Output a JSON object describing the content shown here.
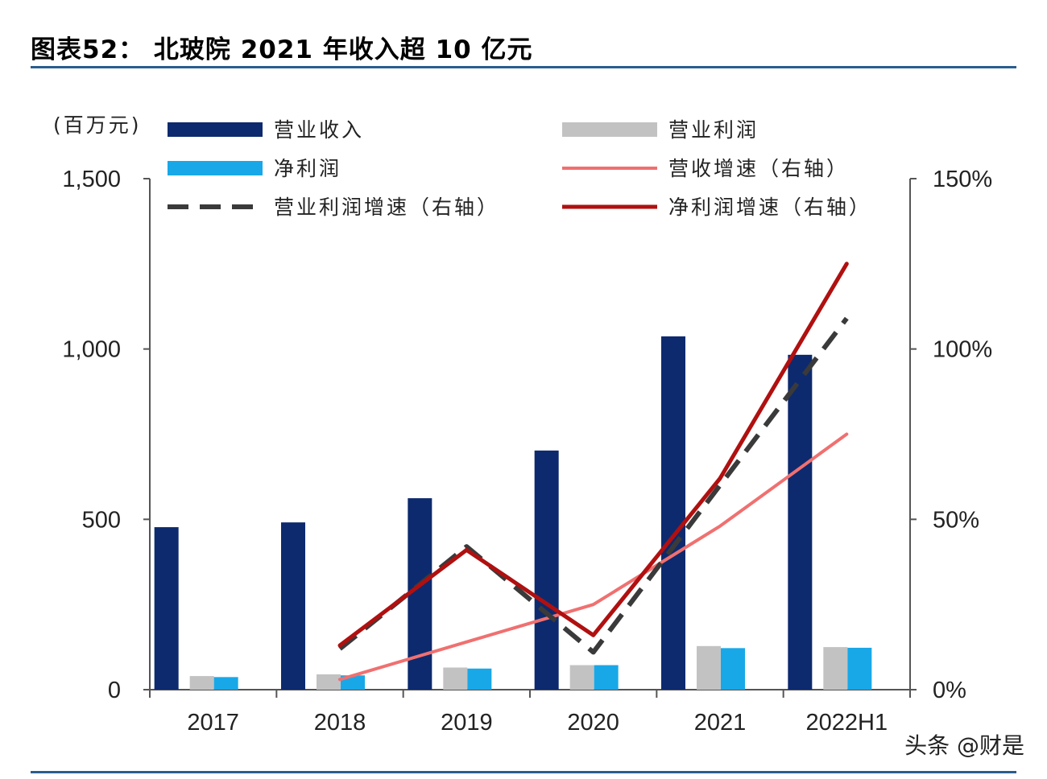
{
  "title": "图表52： 北玻院 2021 年收入超 10 亿元",
  "watermark": "头条 @财是",
  "chart_data": {
    "type": "bar",
    "categories": [
      "2017",
      "2018",
      "2019",
      "2020",
      "2021",
      "2022H1"
    ],
    "left_unit": "(百万元)",
    "ylim": [
      0,
      1500
    ],
    "yticks": [
      "0",
      "500",
      "1,000",
      "1,500"
    ],
    "y2lim": [
      0,
      1.5
    ],
    "y2ticks": [
      "0%",
      "50%",
      "100%",
      "150%"
    ],
    "series": [
      {
        "name": "营业收入",
        "kind": "bar",
        "axis": "left",
        "color": "#0d2a6e",
        "values": [
          477,
          491,
          562,
          702,
          1037,
          983
        ]
      },
      {
        "name": "营业利润",
        "kind": "bar",
        "axis": "left",
        "color": "#c2c2c2",
        "values": [
          40,
          45,
          65,
          72,
          128,
          125
        ]
      },
      {
        "name": "净利润",
        "kind": "bar",
        "axis": "left",
        "color": "#18a8e8",
        "values": [
          37,
          42,
          62,
          72,
          122,
          123
        ]
      },
      {
        "name": "营收增速（右轴）",
        "kind": "line",
        "axis": "right",
        "color": "#f07070",
        "style": "solid-thin",
        "values": [
          null,
          0.03,
          0.14,
          0.25,
          0.48,
          0.75
        ]
      },
      {
        "name": "营业利润增速（右轴）",
        "kind": "line",
        "axis": "right",
        "color": "#3a3a3a",
        "style": "dashed",
        "values": [
          null,
          0.12,
          0.42,
          0.11,
          0.6,
          1.09
        ]
      },
      {
        "name": "净利润增速（右轴）",
        "kind": "line",
        "axis": "right",
        "color": "#b01010",
        "style": "solid-thick",
        "values": [
          null,
          0.13,
          0.41,
          0.16,
          0.62,
          1.25
        ]
      }
    ]
  }
}
